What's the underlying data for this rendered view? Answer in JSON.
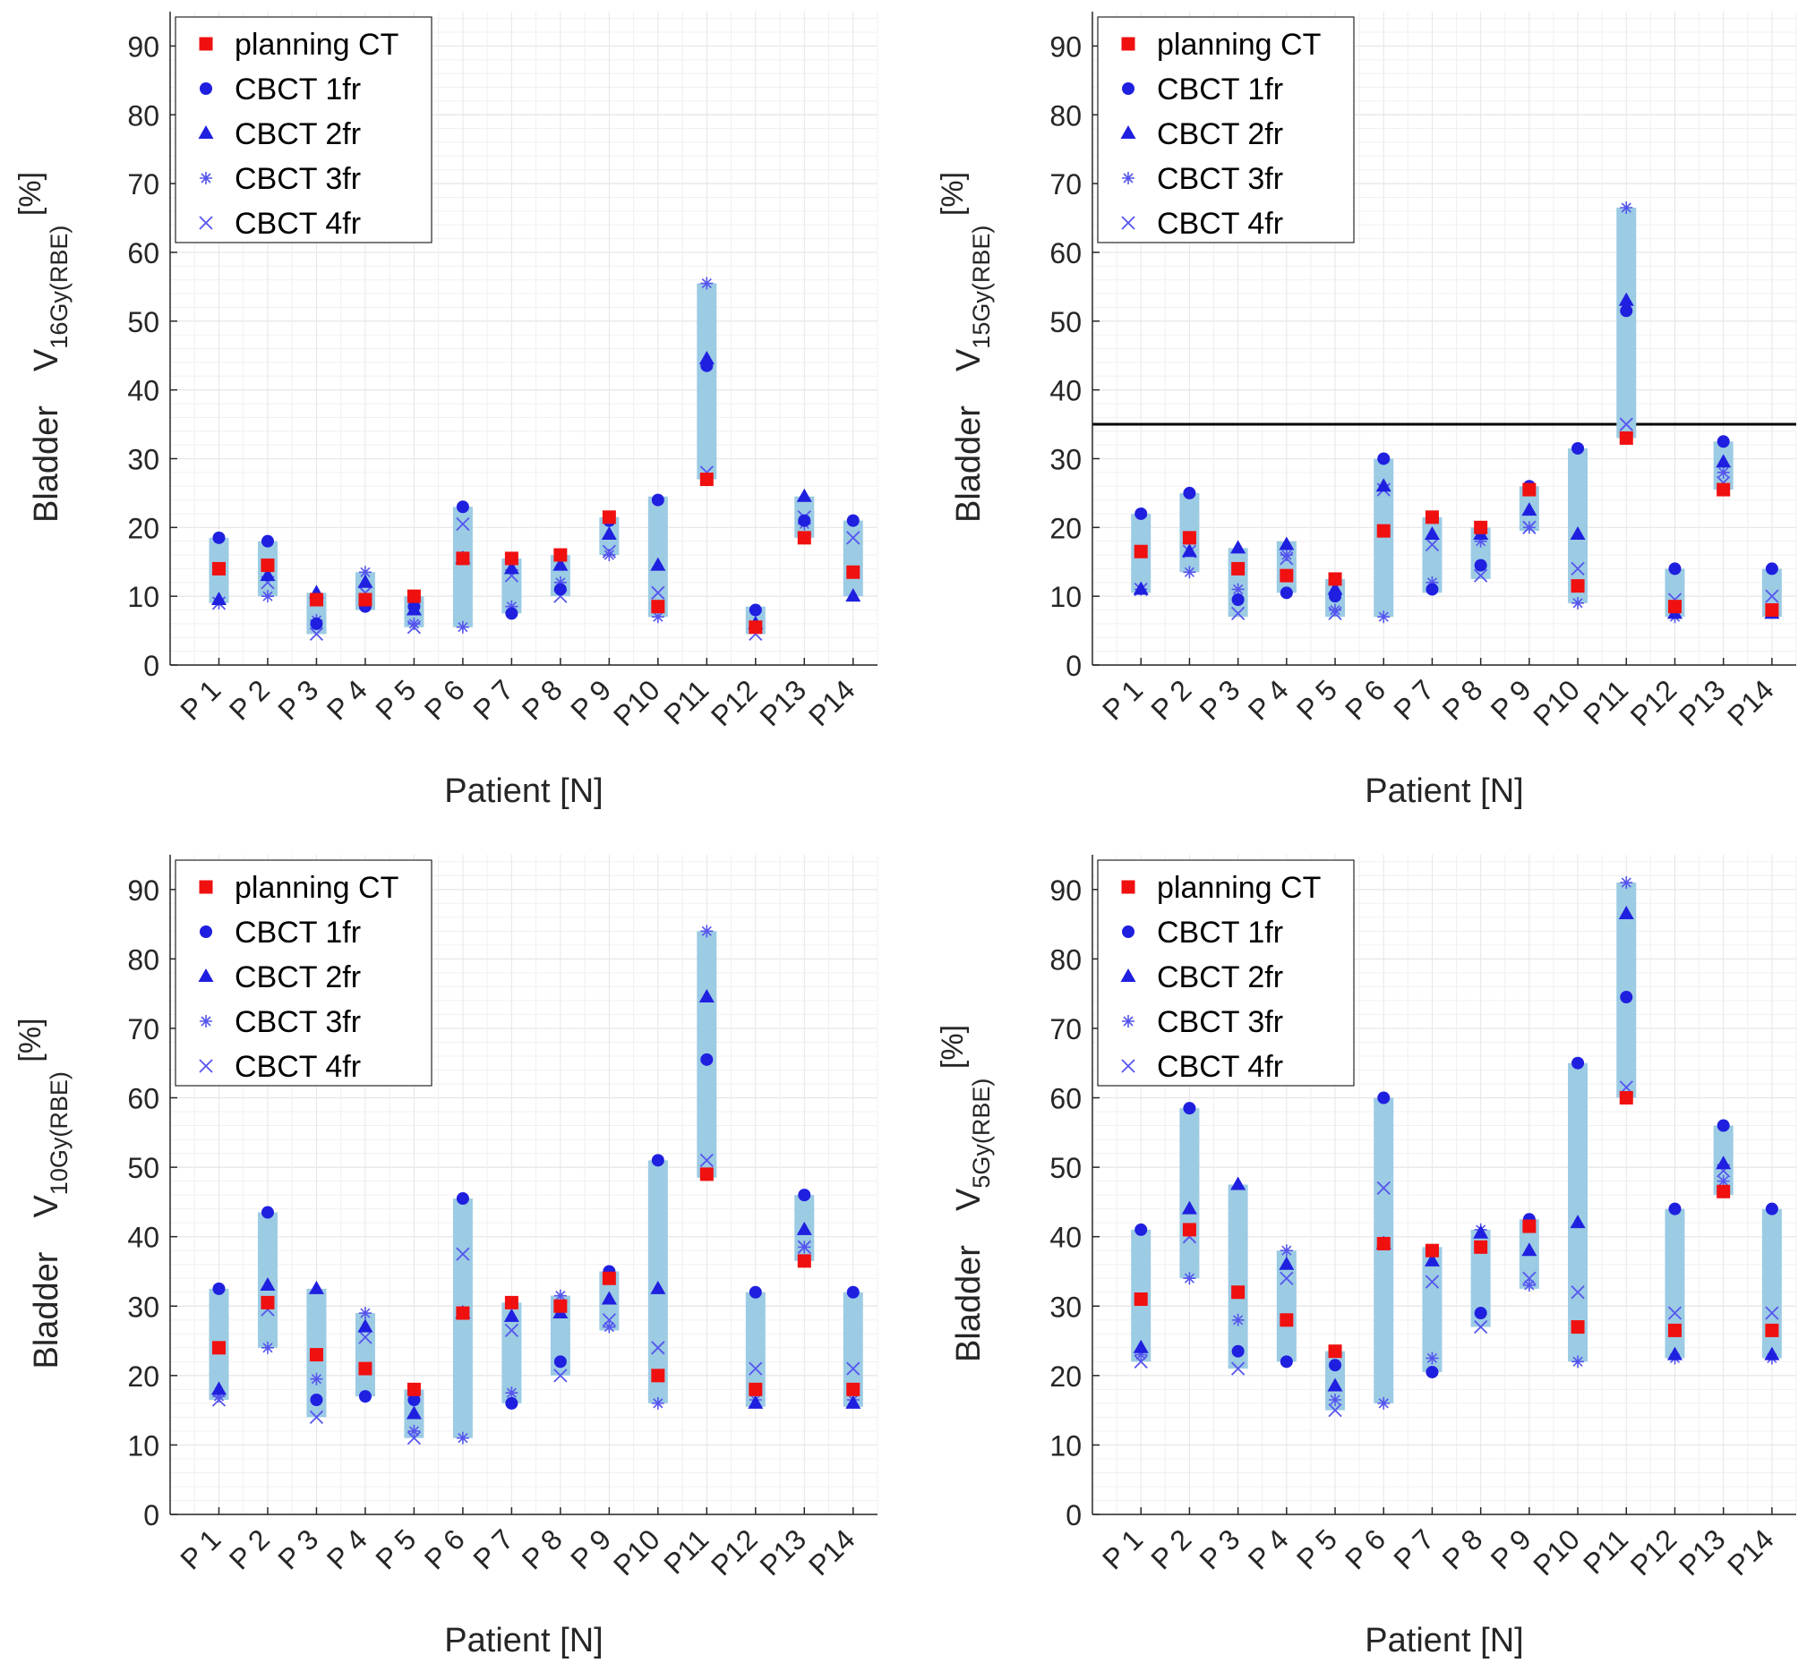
{
  "colors": {
    "planning": "#f01010",
    "cbct": "#1f1fe0",
    "cbct_light": "#5555ee",
    "range": "#9ccbe4",
    "grid": "#e6e6e6",
    "axis": "#262626",
    "threshold": "#000000"
  },
  "legend": [
    {
      "label": "planning CT",
      "marker": "square-red"
    },
    {
      "label": "CBCT 1fr",
      "marker": "circle-blue"
    },
    {
      "label": "CBCT 2fr",
      "marker": "triangle-blue"
    },
    {
      "label": "CBCT 3fr",
      "marker": "asterisk-blue"
    },
    {
      "label": "CBCT 4fr",
      "marker": "x-blue"
    }
  ],
  "chart_data": [
    {
      "type": "scatter",
      "panel": "top-left",
      "ylabel": {
        "prefix": "Bladder",
        "main": "V",
        "sub": "16Gy(RBE)",
        "unit": "[%]"
      },
      "xlabel": "Patient [N]",
      "ylim": [
        0,
        95
      ],
      "yticks": [
        0,
        10,
        20,
        30,
        40,
        50,
        60,
        70,
        80,
        90
      ],
      "categories": [
        "P 1",
        "P 2",
        "P 3",
        "P 4",
        "P 5",
        "P 6",
        "P 7",
        "P 8",
        "P 9",
        "P10",
        "P11",
        "P12",
        "P13",
        "P14"
      ],
      "ranges": [
        [
          9,
          18.5
        ],
        [
          10,
          18
        ],
        [
          4.5,
          10.5
        ],
        [
          8,
          13.5
        ],
        [
          5.5,
          10
        ],
        [
          5.5,
          23
        ],
        [
          7.5,
          15.5
        ],
        [
          10,
          16
        ],
        [
          16,
          21.5
        ],
        [
          7,
          24.5
        ],
        [
          27,
          55.5
        ],
        [
          4.5,
          8.5
        ],
        [
          18.5,
          24.5
        ],
        [
          10,
          21
        ]
      ],
      "series": [
        {
          "name": "planning CT",
          "values": [
            14,
            14.5,
            9.5,
            9.5,
            10,
            15.5,
            15.5,
            16,
            21.5,
            8.5,
            27,
            5.5,
            18.5,
            13.5
          ]
        },
        {
          "name": "CBCT 1fr",
          "values": [
            18.5,
            18,
            6,
            8.5,
            8.5,
            23,
            7.5,
            11,
            21,
            24,
            43.5,
            8,
            21,
            21
          ]
        },
        {
          "name": "CBCT 2fr",
          "values": [
            9.5,
            13,
            10.5,
            12,
            8,
            15.5,
            14,
            14.5,
            19,
            14.5,
            44.5,
            6,
            24.5,
            10
          ]
        },
        {
          "name": "CBCT 3fr",
          "values": [
            9,
            10,
            6.5,
            13.5,
            6,
            5.5,
            8.5,
            12,
            16,
            7,
            55.5,
            5.5,
            20.5,
            13.5
          ]
        },
        {
          "name": "CBCT 4fr",
          "values": [
            9,
            12,
            4.5,
            10.5,
            5.5,
            20.5,
            13,
            10,
            16.5,
            10.5,
            28,
            4.5,
            21.5,
            18.5
          ]
        }
      ],
      "legend_position": "top-left"
    },
    {
      "type": "scatter",
      "panel": "top-right",
      "ylabel": {
        "prefix": "Bladder",
        "main": "V",
        "sub": "15Gy(RBE)",
        "unit": "[%]"
      },
      "xlabel": "Patient [N]",
      "ylim": [
        0,
        95
      ],
      "yticks": [
        0,
        10,
        20,
        30,
        40,
        50,
        60,
        70,
        80,
        90
      ],
      "threshold": 35,
      "categories": [
        "P 1",
        "P 2",
        "P 3",
        "P 4",
        "P 5",
        "P 6",
        "P 7",
        "P 8",
        "P 9",
        "P10",
        "P11",
        "P12",
        "P13",
        "P14"
      ],
      "ranges": [
        [
          10.5,
          22
        ],
        [
          13.5,
          25
        ],
        [
          7,
          17
        ],
        [
          10.5,
          18
        ],
        [
          7,
          12.5
        ],
        [
          7,
          30
        ],
        [
          10.5,
          21.5
        ],
        [
          12.5,
          20
        ],
        [
          19.5,
          26
        ],
        [
          9,
          31.5
        ],
        [
          33,
          66.5
        ],
        [
          7,
          14
        ],
        [
          25.5,
          32.5
        ],
        [
          7,
          14
        ]
      ],
      "series": [
        {
          "name": "planning CT",
          "values": [
            16.5,
            18.5,
            14,
            13,
            12.5,
            19.5,
            21.5,
            20,
            25.5,
            11.5,
            33,
            8.5,
            25.5,
            8
          ]
        },
        {
          "name": "CBCT 1fr",
          "values": [
            22,
            25,
            9.5,
            10.5,
            10,
            30,
            11,
            14.5,
            26,
            31.5,
            51.5,
            14,
            32.5,
            14
          ]
        },
        {
          "name": "CBCT 2fr",
          "values": [
            11,
            16.5,
            17,
            17.5,
            11,
            26,
            19,
            19,
            22.5,
            19,
            53,
            7.5,
            29.5,
            7.5
          ]
        },
        {
          "name": "CBCT 3fr",
          "values": [
            11,
            13.5,
            11,
            16,
            8,
            7,
            12,
            18,
            20,
            9,
            66.5,
            7,
            28,
            8
          ]
        },
        {
          "name": "CBCT 4fr",
          "values": [
            11,
            16.5,
            7.5,
            15.5,
            7.5,
            25.5,
            17.5,
            13,
            20,
            14,
            35,
            9.5,
            26.5,
            10
          ]
        }
      ],
      "legend_position": "top-left"
    },
    {
      "type": "scatter",
      "panel": "bottom-left",
      "ylabel": {
        "prefix": "Bladder",
        "main": "V",
        "sub": "10Gy(RBE)",
        "unit": "[%]"
      },
      "xlabel": "Patient [N]",
      "ylim": [
        0,
        95
      ],
      "yticks": [
        0,
        10,
        20,
        30,
        40,
        50,
        60,
        70,
        80,
        90
      ],
      "categories": [
        "P 1",
        "P 2",
        "P 3",
        "P 4",
        "P 5",
        "P 6",
        "P 7",
        "P 8",
        "P 9",
        "P10",
        "P11",
        "P12",
        "P13",
        "P14"
      ],
      "ranges": [
        [
          16.5,
          32.5
        ],
        [
          24,
          43.5
        ],
        [
          14,
          32.5
        ],
        [
          17,
          29
        ],
        [
          11,
          18
        ],
        [
          11,
          45.5
        ],
        [
          16,
          30.5
        ],
        [
          20,
          31.5
        ],
        [
          26.5,
          35
        ],
        [
          16,
          51
        ],
        [
          48.5,
          84
        ],
        [
          15.5,
          32
        ],
        [
          36.5,
          46
        ],
        [
          15.5,
          32
        ]
      ],
      "series": [
        {
          "name": "planning CT",
          "values": [
            24,
            30.5,
            23,
            21,
            18,
            29,
            30.5,
            30,
            34,
            20,
            49,
            18,
            36.5,
            18
          ]
        },
        {
          "name": "CBCT 1fr",
          "values": [
            32.5,
            43.5,
            16.5,
            17,
            16.5,
            45.5,
            16,
            22,
            35,
            51,
            65.5,
            32,
            46,
            32
          ]
        },
        {
          "name": "CBCT 2fr",
          "values": [
            18,
            33,
            32.5,
            27,
            14.5,
            29,
            28.5,
            29,
            31,
            32.5,
            74.5,
            16,
            41,
            16
          ]
        },
        {
          "name": "CBCT 3fr",
          "values": [
            17,
            24,
            19.5,
            29,
            12,
            11,
            17.5,
            31.5,
            27,
            16,
            84,
            16.5,
            38.5,
            16.5
          ]
        },
        {
          "name": "CBCT 4fr",
          "values": [
            16.5,
            29.5,
            14,
            25.5,
            11,
            37.5,
            26.5,
            20,
            28,
            24,
            51,
            21,
            38.5,
            21
          ]
        }
      ],
      "legend_position": "top-left"
    },
    {
      "type": "scatter",
      "panel": "bottom-right",
      "ylabel": {
        "prefix": "Bladder",
        "main": "V",
        "sub": "5Gy(RBE)",
        "unit": "[%]"
      },
      "xlabel": "Patient [N]",
      "ylim": [
        0,
        95
      ],
      "yticks": [
        0,
        10,
        20,
        30,
        40,
        50,
        60,
        70,
        80,
        90
      ],
      "categories": [
        "P 1",
        "P 2",
        "P 3",
        "P 4",
        "P 5",
        "P 6",
        "P 7",
        "P 8",
        "P 9",
        "P10",
        "P11",
        "P12",
        "P13",
        "P14"
      ],
      "ranges": [
        [
          22,
          41
        ],
        [
          34,
          58.5
        ],
        [
          21,
          47.5
        ],
        [
          22,
          38
        ],
        [
          15,
          23.5
        ],
        [
          16,
          60
        ],
        [
          20.5,
          38.5
        ],
        [
          27,
          41
        ],
        [
          32.5,
          42.5
        ],
        [
          22,
          65
        ],
        [
          60,
          91
        ],
        [
          22.5,
          44
        ],
        [
          46,
          56
        ],
        [
          22.5,
          44
        ]
      ],
      "series": [
        {
          "name": "planning CT",
          "values": [
            31,
            41,
            32,
            28,
            23.5,
            39,
            38,
            38.5,
            41.5,
            27,
            60,
            26.5,
            46.5,
            26.5
          ]
        },
        {
          "name": "CBCT 1fr",
          "values": [
            41,
            58.5,
            23.5,
            22,
            21.5,
            60,
            20.5,
            29,
            42.5,
            65,
            74.5,
            44,
            56,
            44
          ]
        },
        {
          "name": "CBCT 2fr",
          "values": [
            24,
            44,
            47.5,
            36,
            18.5,
            39,
            36.5,
            40.5,
            38,
            42,
            86.5,
            23,
            50.5,
            23
          ]
        },
        {
          "name": "CBCT 3fr",
          "values": [
            23,
            34,
            28,
            38,
            16.5,
            16,
            22.5,
            41,
            33,
            22,
            91,
            22.5,
            48,
            22.5
          ]
        },
        {
          "name": "CBCT 4fr",
          "values": [
            22,
            40,
            21,
            34,
            15,
            47,
            33.5,
            27,
            34,
            32,
            61.5,
            29,
            49.5,
            29
          ]
        }
      ],
      "legend_position": "top-left"
    }
  ]
}
